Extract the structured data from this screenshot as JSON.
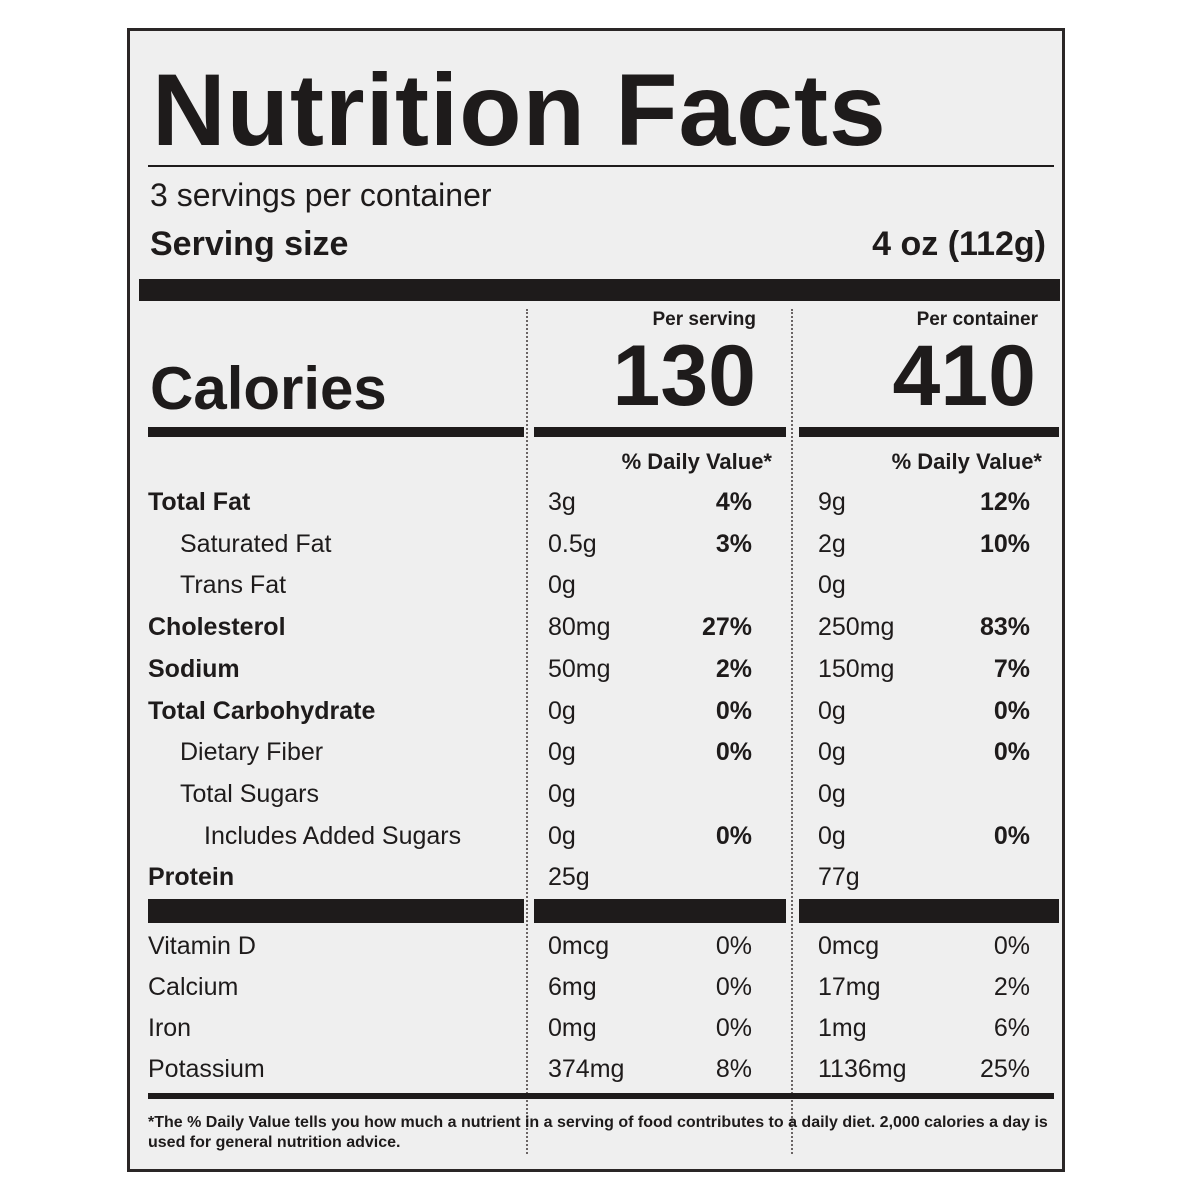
{
  "title": "Nutrition Facts",
  "servings_per_container": "3 servings per container",
  "serving_size": {
    "label": "Serving size",
    "value": "4 oz (112g)"
  },
  "calories": {
    "label": "Calories",
    "per_serving_header": "Per serving",
    "per_container_header": "Per container",
    "per_serving": "130",
    "per_container": "410"
  },
  "daily_value_header": "% Daily Value*",
  "nutrients": [
    {
      "name": "Total Fat",
      "bold": true,
      "indent": 0,
      "serving_amount": "3g",
      "serving_dv": "4%",
      "container_amount": "9g",
      "container_dv": "12%"
    },
    {
      "name": "Saturated Fat",
      "bold": false,
      "indent": 1,
      "serving_amount": "0.5g",
      "serving_dv": "3%",
      "container_amount": "2g",
      "container_dv": "10%"
    },
    {
      "name": "Trans Fat",
      "bold": false,
      "indent": 1,
      "serving_amount": "0g",
      "serving_dv": "",
      "container_amount": "0g",
      "container_dv": ""
    },
    {
      "name": "Cholesterol",
      "bold": true,
      "indent": 0,
      "serving_amount": "80mg",
      "serving_dv": "27%",
      "container_amount": "250mg",
      "container_dv": "83%"
    },
    {
      "name": "Sodium",
      "bold": true,
      "indent": 0,
      "serving_amount": "50mg",
      "serving_dv": "2%",
      "container_amount": "150mg",
      "container_dv": "7%"
    },
    {
      "name": "Total Carbohydrate",
      "bold": true,
      "indent": 0,
      "serving_amount": "0g",
      "serving_dv": "0%",
      "container_amount": "0g",
      "container_dv": "0%"
    },
    {
      "name": "Dietary Fiber",
      "bold": false,
      "indent": 1,
      "serving_amount": "0g",
      "serving_dv": "0%",
      "container_amount": "0g",
      "container_dv": "0%"
    },
    {
      "name": "Total Sugars",
      "bold": false,
      "indent": 1,
      "serving_amount": "0g",
      "serving_dv": "",
      "container_amount": "0g",
      "container_dv": ""
    },
    {
      "name": "Includes Added Sugars",
      "bold": false,
      "indent": 2,
      "serving_amount": "0g",
      "serving_dv": "0%",
      "container_amount": "0g",
      "container_dv": "0%"
    },
    {
      "name": "Protein",
      "bold": true,
      "indent": 0,
      "serving_amount": "25g",
      "serving_dv": "",
      "container_amount": "77g",
      "container_dv": ""
    }
  ],
  "vitamins": [
    {
      "name": "Vitamin D",
      "serving_amount": "0mcg",
      "serving_dv": "0%",
      "container_amount": "0mcg",
      "container_dv": "0%"
    },
    {
      "name": "Calcium",
      "serving_amount": "6mg",
      "serving_dv": "0%",
      "container_amount": "17mg",
      "container_dv": "2%"
    },
    {
      "name": "Iron",
      "serving_amount": "0mg",
      "serving_dv": "0%",
      "container_amount": "1mg",
      "container_dv": "6%"
    },
    {
      "name": "Potassium",
      "serving_amount": "374mg",
      "serving_dv": "8%",
      "container_amount": "1136mg",
      "container_dv": "25%"
    }
  ],
  "footnote": "*The % Daily Value tells you how much a nutrient in a serving of food contributes to a daily diet. 2,000 calories a day is used for general nutrition advice."
}
